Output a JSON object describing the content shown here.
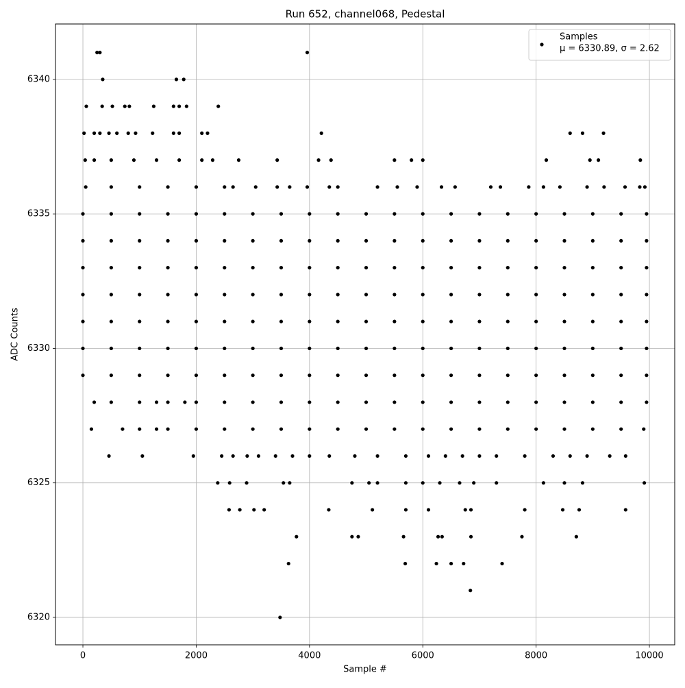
{
  "chart_data": {
    "type": "scatter",
    "title": "Run 652, channel068, Pedestal",
    "xlabel": "Sample #",
    "ylabel": "ADC Counts",
    "xlim": [
      -484,
      10447
    ],
    "ylim": [
      6318.98,
      6342.06
    ],
    "xticks": [
      0,
      2000,
      4000,
      6000,
      8000,
      10000
    ],
    "yticks": [
      6320,
      6325,
      6330,
      6335,
      6340
    ],
    "grid": true,
    "legend_position": "upper right",
    "series": [
      {
        "name": "Samples",
        "annotation": "μ = 6330.89, σ = 2.62",
        "color": "#000000",
        "x": [
          250,
          300,
          3960,
          350,
          1650,
          1780,
          60,
          340,
          520,
          740,
          820,
          1250,
          1600,
          1700,
          1830,
          2390,
          20,
          200,
          300,
          460,
          600,
          800,
          930,
          1230,
          1600,
          1700,
          2100,
          2200,
          4210,
          8600,
          8820,
          9190,
          40,
          200,
          500,
          900,
          1300,
          1700,
          2100,
          2290,
          2750,
          3430,
          4160,
          4380,
          5500,
          5800,
          6000,
          8180,
          8950,
          9100,
          9840,
          50,
          500,
          1000,
          1500,
          2000,
          2500,
          2650,
          3050,
          3430,
          3650,
          3960,
          4350,
          4500,
          5200,
          5550,
          5900,
          6330,
          6570,
          7200,
          7370,
          7870,
          8130,
          8420,
          8900,
          9200,
          9570,
          9830,
          9920,
          0,
          500,
          1000,
          1500,
          2000,
          2500,
          3000,
          3500,
          4000,
          4500,
          5000,
          5500,
          6000,
          6500,
          7000,
          7500,
          8000,
          8500,
          9000,
          9500,
          9950,
          0,
          500,
          1000,
          1500,
          2000,
          2500,
          3000,
          3500,
          4000,
          4500,
          5000,
          5500,
          6000,
          6500,
          7000,
          7500,
          8000,
          8500,
          9000,
          9500,
          9950,
          0,
          500,
          1000,
          1500,
          2000,
          2500,
          3000,
          3500,
          4000,
          4500,
          5000,
          5500,
          6000,
          6500,
          7000,
          7500,
          8000,
          8500,
          9000,
          9500,
          9950,
          0,
          500,
          1000,
          1500,
          2000,
          2500,
          3000,
          3500,
          4000,
          4500,
          5000,
          5500,
          6000,
          6500,
          7000,
          7500,
          8000,
          8500,
          9000,
          9500,
          9950,
          0,
          500,
          1000,
          1500,
          2000,
          2500,
          3000,
          3500,
          4000,
          4500,
          5000,
          5500,
          6000,
          6500,
          7000,
          7500,
          8000,
          8500,
          9000,
          9500,
          9950,
          0,
          500,
          1000,
          1500,
          2000,
          2500,
          3000,
          3500,
          4000,
          4500,
          5000,
          5500,
          6000,
          6500,
          7000,
          7500,
          8000,
          8500,
          9000,
          9500,
          9950,
          0,
          500,
          1000,
          1500,
          2000,
          2500,
          3000,
          3500,
          4000,
          4500,
          5000,
          5500,
          6000,
          6500,
          7000,
          7500,
          8000,
          8500,
          9000,
          9500,
          9950,
          200,
          500,
          1000,
          1300,
          1500,
          1800,
          2000,
          2500,
          3000,
          3500,
          4000,
          4500,
          5000,
          5500,
          6000,
          6500,
          7000,
          7500,
          8000,
          8500,
          9000,
          9500,
          9950,
          150,
          700,
          1000,
          1300,
          1500,
          2000,
          2500,
          3000,
          3500,
          4000,
          4500,
          5000,
          5500,
          6000,
          6500,
          7000,
          7500,
          8000,
          8500,
          9000,
          9500,
          9900,
          460,
          1050,
          1950,
          2450,
          2650,
          2900,
          3100,
          3400,
          3700,
          4000,
          4350,
          4800,
          5200,
          5700,
          6100,
          6400,
          6700,
          7000,
          7300,
          7800,
          8300,
          8600,
          8900,
          9300,
          9580,
          2380,
          2590,
          2890,
          3540,
          3650,
          4750,
          5050,
          5200,
          5700,
          6000,
          6300,
          6650,
          6900,
          7300,
          8130,
          8500,
          8820,
          9910,
          2580,
          2770,
          3020,
          3200,
          4340,
          5110,
          5700,
          6100,
          6750,
          6850,
          7800,
          8470,
          8760,
          9580,
          3770,
          4750,
          4860,
          5660,
          6270,
          6340,
          6850,
          7750,
          8710,
          3630,
          5690,
          6240,
          6500,
          6720,
          7400,
          6840,
          3480
        ],
        "values": [
          6341,
          6341,
          6341,
          6340,
          6340,
          6340,
          6339,
          6339,
          6339,
          6339,
          6339,
          6339,
          6339,
          6339,
          6339,
          6339,
          6338,
          6338,
          6338,
          6338,
          6338,
          6338,
          6338,
          6338,
          6338,
          6338,
          6338,
          6338,
          6338,
          6338,
          6338,
          6338,
          6337,
          6337,
          6337,
          6337,
          6337,
          6337,
          6337,
          6337,
          6337,
          6337,
          6337,
          6337,
          6337,
          6337,
          6337,
          6337,
          6337,
          6337,
          6337,
          6336,
          6336,
          6336,
          6336,
          6336,
          6336,
          6336,
          6336,
          6336,
          6336,
          6336,
          6336,
          6336,
          6336,
          6336,
          6336,
          6336,
          6336,
          6336,
          6336,
          6336,
          6336,
          6336,
          6336,
          6336,
          6336,
          6336,
          6336,
          6335,
          6335,
          6335,
          6335,
          6335,
          6335,
          6335,
          6335,
          6335,
          6335,
          6335,
          6335,
          6335,
          6335,
          6335,
          6335,
          6335,
          6335,
          6335,
          6335,
          6335,
          6334,
          6334,
          6334,
          6334,
          6334,
          6334,
          6334,
          6334,
          6334,
          6334,
          6334,
          6334,
          6334,
          6334,
          6334,
          6334,
          6334,
          6334,
          6334,
          6334,
          6334,
          6333,
          6333,
          6333,
          6333,
          6333,
          6333,
          6333,
          6333,
          6333,
          6333,
          6333,
          6333,
          6333,
          6333,
          6333,
          6333,
          6333,
          6333,
          6333,
          6333,
          6333,
          6332,
          6332,
          6332,
          6332,
          6332,
          6332,
          6332,
          6332,
          6332,
          6332,
          6332,
          6332,
          6332,
          6332,
          6332,
          6332,
          6332,
          6332,
          6332,
          6332,
          6332,
          6331,
          6331,
          6331,
          6331,
          6331,
          6331,
          6331,
          6331,
          6331,
          6331,
          6331,
          6331,
          6331,
          6331,
          6331,
          6331,
          6331,
          6331,
          6331,
          6331,
          6331,
          6330,
          6330,
          6330,
          6330,
          6330,
          6330,
          6330,
          6330,
          6330,
          6330,
          6330,
          6330,
          6330,
          6330,
          6330,
          6330,
          6330,
          6330,
          6330,
          6330,
          6330,
          6329,
          6329,
          6329,
          6329,
          6329,
          6329,
          6329,
          6329,
          6329,
          6329,
          6329,
          6329,
          6329,
          6329,
          6329,
          6329,
          6329,
          6329,
          6329,
          6329,
          6329,
          6328,
          6328,
          6328,
          6328,
          6328,
          6328,
          6328,
          6328,
          6328,
          6328,
          6328,
          6328,
          6328,
          6328,
          6328,
          6328,
          6328,
          6328,
          6328,
          6328,
          6328,
          6328,
          6328,
          6327,
          6327,
          6327,
          6327,
          6327,
          6327,
          6327,
          6327,
          6327,
          6327,
          6327,
          6327,
          6327,
          6327,
          6327,
          6327,
          6327,
          6327,
          6327,
          6327,
          6327,
          6327,
          6326,
          6326,
          6326,
          6326,
          6326,
          6326,
          6326,
          6326,
          6326,
          6326,
          6326,
          6326,
          6326,
          6326,
          6326,
          6326,
          6326,
          6326,
          6326,
          6326,
          6326,
          6326,
          6326,
          6326,
          6326,
          6325,
          6325,
          6325,
          6325,
          6325,
          6325,
          6325,
          6325,
          6325,
          6325,
          6325,
          6325,
          6325,
          6325,
          6325,
          6325,
          6325,
          6325,
          6324,
          6324,
          6324,
          6324,
          6324,
          6324,
          6324,
          6324,
          6324,
          6324,
          6324,
          6324,
          6324,
          6324,
          6323,
          6323,
          6323,
          6323,
          6323,
          6323,
          6323,
          6323,
          6323,
          6322,
          6322,
          6322,
          6322,
          6322,
          6322,
          6321,
          6320
        ]
      }
    ]
  }
}
